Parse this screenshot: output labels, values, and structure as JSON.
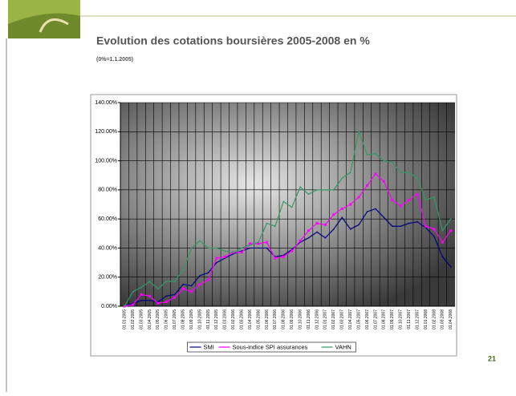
{
  "chart_data": {
    "type": "line",
    "title": "Evolution des cotations boursières 2005-2008 en %",
    "subtitle": "(0%=1.1.2005)",
    "page_number": "21",
    "categories": [
      "01.01.2005",
      "01.02.2005",
      "01.03.2005",
      "01.04.2005",
      "01.05.2005",
      "01.06.2005",
      "01.07.2005",
      "01.08.2005",
      "01.09.2005",
      "01.10.2005",
      "01.11.2005",
      "01.12.2005",
      "01.01.2006",
      "01.02.2006",
      "01.03.2006",
      "01.04.2006",
      "01.05.2006",
      "01.06.2006",
      "01.07.2006",
      "01.08.2006",
      "01.09.2006",
      "01.10.2006",
      "01.11.2006",
      "01.12.2006",
      "01.01.2007",
      "01.02.2007",
      "01.03.2007",
      "01.04.2007",
      "01.05.2007",
      "01.06.2007",
      "01.07.2007",
      "01.08.2007",
      "01.09.2007",
      "01.10.2007",
      "01.11.2007",
      "01.12.2007",
      "01.01.2008",
      "01.02.2008",
      "01.03.2008",
      "01.04.2008"
    ],
    "series": [
      {
        "name": "SMI",
        "color": "#000080",
        "values": [
          0,
          2,
          4,
          4,
          3,
          7,
          8,
          15,
          14,
          21,
          23,
          30,
          33,
          36,
          38,
          40,
          40,
          40,
          34,
          35,
          39,
          44,
          47,
          51,
          47,
          53,
          61,
          53,
          56,
          65,
          67,
          61,
          55,
          55,
          57,
          58,
          54,
          48,
          34,
          27
        ]
      },
      {
        "name": "Sous-indice SPI assurances",
        "color": "#ff00ff",
        "values": [
          0,
          1,
          8,
          7,
          2,
          3,
          6,
          12,
          10,
          15,
          18,
          33,
          34,
          37,
          37,
          43,
          43,
          44,
          33,
          34,
          38,
          45,
          52,
          57,
          56,
          63,
          67,
          70,
          75,
          83,
          91,
          86,
          73,
          69,
          73,
          77,
          55,
          53,
          44,
          52
        ]
      },
      {
        "name": "VAHN",
        "color": "#339966",
        "values": [
          0,
          10,
          13,
          17,
          12,
          17,
          17,
          25,
          40,
          45,
          40,
          40,
          38,
          37,
          40,
          42,
          44,
          57,
          55,
          72,
          68,
          82,
          77,
          80,
          80,
          80,
          88,
          92,
          120,
          104,
          105,
          100,
          99,
          92,
          92,
          88,
          73,
          75,
          52,
          60
        ]
      }
    ],
    "ylim": [
      0,
      140
    ],
    "yticks": [
      {
        "value": 0,
        "label": "0.00%"
      },
      {
        "value": 20,
        "label": "20.00%"
      },
      {
        "value": 40,
        "label": "40.00%"
      },
      {
        "value": 60,
        "label": "60.00%"
      },
      {
        "value": 80,
        "label": "80.00%"
      },
      {
        "value": 100,
        "label": "100.00%"
      },
      {
        "value": 120,
        "label": "120.00%"
      },
      {
        "value": 140,
        "label": "140.00%"
      }
    ],
    "grid": true
  }
}
